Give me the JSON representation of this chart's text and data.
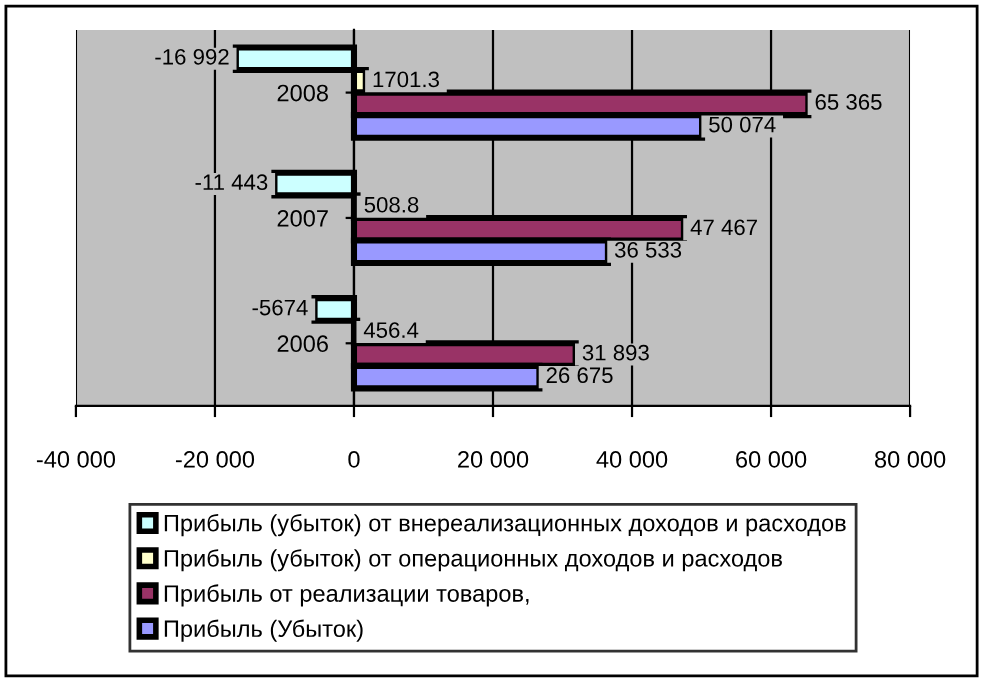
{
  "chart_data": {
    "type": "bar",
    "orientation": "horizontal",
    "categories": [
      "2008",
      "2007",
      "2006"
    ],
    "series": [
      {
        "name": "Прибыль (убыток) от внереализационных доходов и расходов",
        "color": "#ccffff",
        "values": [
          -16992,
          -11443,
          -5674
        ],
        "value_labels": [
          "-16 992",
          "-11 443",
          "-5674"
        ]
      },
      {
        "name": "Прибыль (убыток) от операционных доходов и расходов",
        "color": "#ffffcc",
        "values": [
          1701.3,
          508.8,
          456.4
        ],
        "value_labels": [
          "1701.3",
          "508.8",
          "456.4"
        ]
      },
      {
        "name": "Прибыль от реализации товаров,",
        "color": "#993366",
        "values": [
          65365,
          47467,
          31893
        ],
        "value_labels": [
          "65 365",
          "47 467",
          "31 893"
        ]
      },
      {
        "name": "Прибыль (Убыток)",
        "color": "#9999ff",
        "values": [
          50074,
          36533,
          26675
        ],
        "value_labels": [
          "50 074",
          "36 533",
          "26 675"
        ]
      }
    ],
    "xlim": [
      -40000,
      80000
    ],
    "xticks": [
      {
        "value": -40000,
        "label": "-40 000"
      },
      {
        "value": -20000,
        "label": "-20 000"
      },
      0,
      {
        "value": 20000,
        "label": "20 000"
      },
      {
        "value": 40000,
        "label": "40 000"
      },
      {
        "value": 60000,
        "label": "60 000"
      },
      {
        "value": 80000,
        "label": "80 000"
      }
    ],
    "grid": "x",
    "legend": "bottom"
  }
}
